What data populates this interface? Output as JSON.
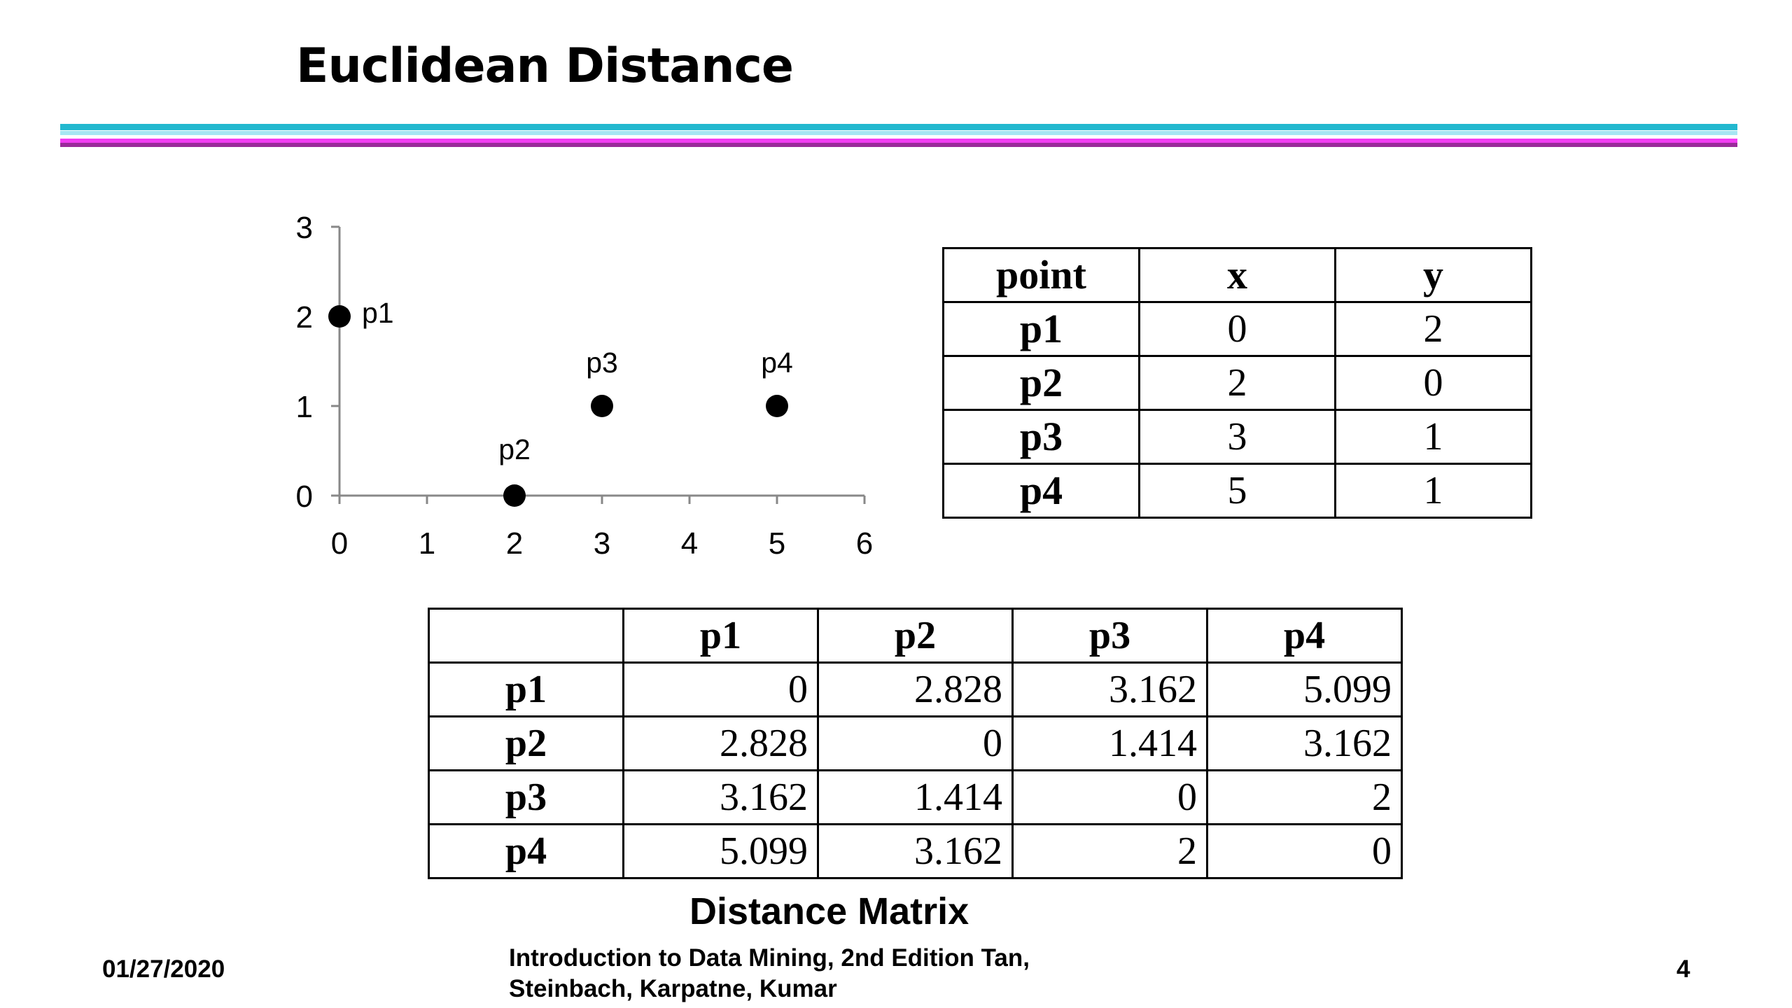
{
  "slide": {
    "title": "Euclidean Distance",
    "caption": "Distance Matrix",
    "footer_date": "01/27/2020",
    "footer_book": "Introduction to Data Mining, 2nd Edition   Tan, Steinbach, Karpatne, Kumar",
    "footer_page": "4"
  },
  "chart_data": [
    {
      "type": "scatter",
      "points": [
        {
          "label": "p1",
          "x": 0,
          "y": 2
        },
        {
          "label": "p2",
          "x": 2,
          "y": 0
        },
        {
          "label": "p3",
          "x": 3,
          "y": 1
        },
        {
          "label": "p4",
          "x": 5,
          "y": 1
        }
      ],
      "x_ticks": [
        "0",
        "1",
        "2",
        "3",
        "4",
        "5",
        "6"
      ],
      "y_ticks": [
        "0",
        "1",
        "2",
        "3"
      ],
      "xlim": [
        0,
        6
      ],
      "ylim": [
        0,
        3
      ],
      "grid": false
    },
    {
      "type": "table",
      "headers": [
        "point",
        "x",
        "y"
      ],
      "rows": [
        [
          "p1",
          "0",
          "2"
        ],
        [
          "p2",
          "2",
          "0"
        ],
        [
          "p3",
          "3",
          "1"
        ],
        [
          "p4",
          "5",
          "1"
        ]
      ]
    },
    {
      "type": "table",
      "headers": [
        "",
        "p1",
        "p2",
        "p3",
        "p4"
      ],
      "rows": [
        [
          "p1",
          "0",
          "2.828",
          "3.162",
          "5.099"
        ],
        [
          "p2",
          "2.828",
          "0",
          "1.414",
          "3.162"
        ],
        [
          "p3",
          "3.162",
          "1.414",
          "0",
          "2"
        ],
        [
          "p4",
          "5.099",
          "3.162",
          "2",
          "0"
        ]
      ]
    }
  ]
}
